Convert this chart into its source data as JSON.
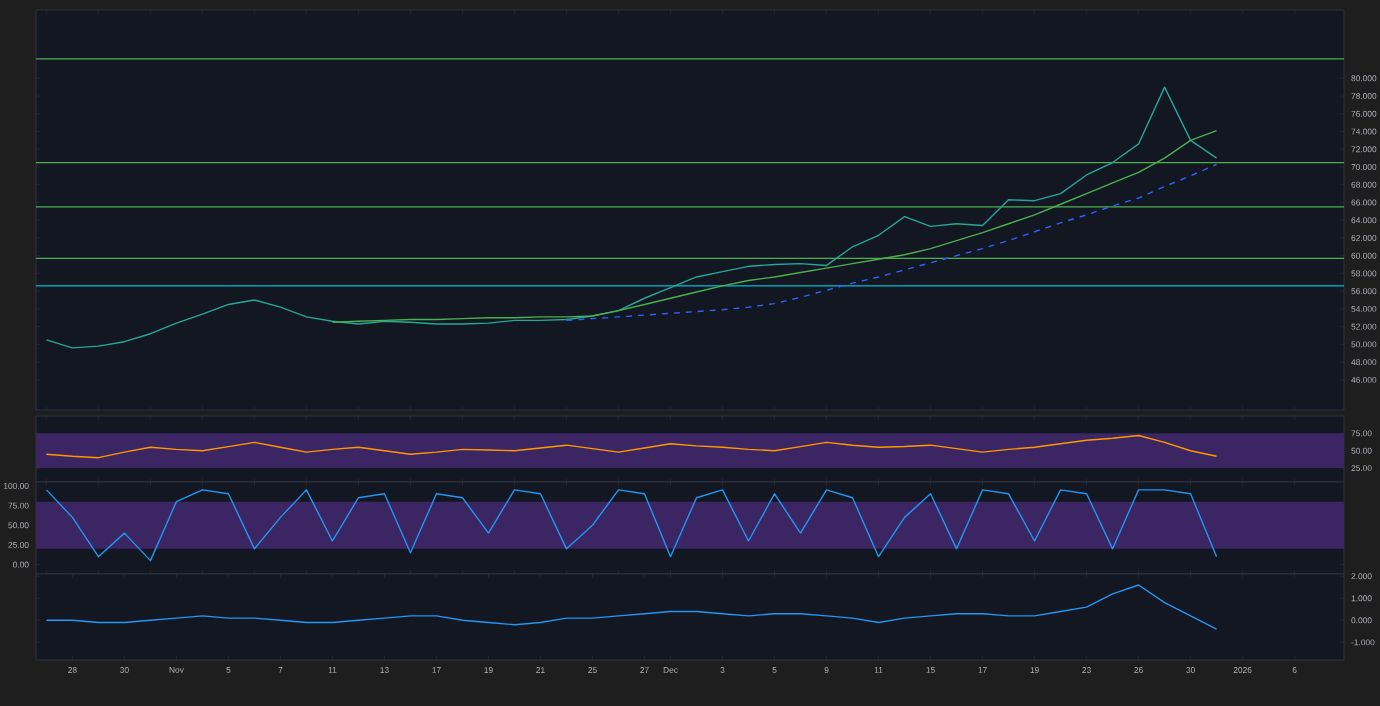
{
  "chart_data": [
    {
      "type": "line",
      "categories": [
        null,
        null,
        null,
        null,
        null,
        null,
        null,
        null,
        null,
        null,
        null,
        null,
        null,
        null,
        null,
        null,
        null,
        null,
        null,
        null,
        null,
        null,
        null,
        null,
        null,
        null,
        null,
        null,
        null,
        null,
        null,
        null,
        null,
        null,
        null,
        null,
        null,
        null,
        null,
        null,
        null,
        null,
        null,
        null,
        null,
        null,
        null,
        null,
        null,
        null
      ],
      "ylim": [
        42.6,
        87.7
      ],
      "yticks": [
        {
          "value": 46,
          "label": "46.000"
        },
        {
          "value": 48,
          "label": "48.000"
        },
        {
          "value": 50,
          "label": "50.000"
        },
        {
          "value": 52,
          "label": "52.000"
        },
        {
          "value": 54,
          "label": "54.000"
        },
        {
          "value": 56,
          "label": "56.000"
        },
        {
          "value": 58,
          "label": "58.000"
        },
        {
          "value": 60,
          "label": "60.000"
        },
        {
          "value": 62,
          "label": "62.000"
        },
        {
          "value": 64,
          "label": "64.000"
        },
        {
          "value": 66,
          "label": "66.000"
        },
        {
          "value": 68,
          "label": "68.000"
        },
        {
          "value": 70,
          "label": "70.000"
        },
        {
          "value": 72,
          "label": "72.000"
        },
        {
          "value": 74,
          "label": "74.000"
        },
        {
          "value": 76,
          "label": "76.000"
        },
        {
          "value": 78,
          "label": "78.000"
        },
        {
          "value": 80,
          "label": "80.000"
        }
      ],
      "series": [
        {
          "color": "#26a69a",
          "values": [
            50.5,
            49.6,
            49.8,
            50.3,
            51.2,
            52.4,
            53.4,
            54.5,
            55.0,
            54.2,
            53.1,
            52.6,
            52.3,
            52.6,
            52.5,
            52.3,
            52.3,
            52.4,
            52.7,
            52.7,
            52.8,
            53.2,
            53.8,
            55.2,
            56.4,
            57.6,
            58.2,
            58.8,
            59.0,
            59.1,
            58.9,
            61.0,
            62.3,
            64.4,
            63.3,
            63.6,
            63.4,
            66.3,
            66.2,
            67.0,
            69.1,
            70.5,
            72.6,
            79.0,
            73.0,
            71.0,
            null,
            null,
            null,
            null
          ]
        },
        {
          "color": "#4caf50",
          "values": [
            null,
            null,
            null,
            null,
            null,
            null,
            null,
            null,
            null,
            null,
            null,
            52.5,
            52.6,
            52.7,
            52.8,
            52.8,
            52.9,
            53.0,
            53.0,
            53.1,
            53.1,
            53.2,
            53.8,
            54.5,
            55.2,
            55.9,
            56.6,
            57.2,
            57.6,
            58.1,
            58.6,
            59.1,
            59.6,
            60.1,
            60.8,
            61.7,
            62.6,
            63.6,
            64.6,
            65.8,
            67.0,
            68.2,
            69.4,
            71.0,
            73.0,
            74.1,
            null,
            null,
            null,
            null
          ]
        },
        {
          "color": "#2962ff",
          "line_style": "dashed",
          "values": [
            null,
            null,
            null,
            null,
            null,
            null,
            null,
            null,
            null,
            null,
            null,
            null,
            null,
            null,
            null,
            null,
            null,
            null,
            null,
            null,
            52.7,
            52.9,
            53.1,
            53.3,
            53.5,
            53.7,
            53.9,
            54.2,
            54.6,
            55.3,
            56.1,
            56.9,
            57.6,
            58.4,
            59.2,
            60.0,
            60.8,
            61.7,
            62.7,
            63.7,
            64.6,
            65.6,
            66.5,
            67.8,
            69.0,
            70.3,
            null,
            null,
            null,
            null
          ]
        }
      ],
      "ref_lines": [
        {
          "axis": "y",
          "value": 82.2,
          "color": "#4caf50"
        },
        {
          "axis": "y",
          "value": 70.5,
          "color": "#4caf50"
        },
        {
          "axis": "y",
          "value": 65.5,
          "color": "#4caf50"
        },
        {
          "axis": "y",
          "value": 59.7,
          "color": "#4caf50"
        },
        {
          "axis": "y",
          "value": 56.6,
          "color": "#00bcd4"
        }
      ]
    },
    {
      "type": "line",
      "categories": [
        null,
        null,
        null,
        null,
        null,
        null,
        null,
        null,
        null,
        null,
        null,
        null,
        null,
        null,
        null,
        null,
        null,
        null,
        null,
        null,
        null,
        null,
        null,
        null,
        null,
        null,
        null,
        null,
        null,
        null,
        null,
        null,
        null,
        null,
        null,
        null,
        null,
        null,
        null,
        null,
        null,
        null,
        null,
        null,
        null,
        null,
        null,
        null,
        null,
        null
      ],
      "ylim": [
        5,
        100
      ],
      "yticks": [
        {
          "value": 25,
          "label": "25.00"
        },
        {
          "value": 50,
          "label": "50.00"
        },
        {
          "value": 75,
          "label": "75.00"
        }
      ],
      "bands": [
        {
          "axis": "y",
          "from": 25,
          "to": 75,
          "color": "#3c2563"
        }
      ],
      "series": [
        {
          "color": "#ff9800",
          "values": [
            45,
            42,
            40,
            48,
            55,
            52,
            50,
            56,
            62,
            55,
            48,
            52,
            55,
            50,
            45,
            48,
            52,
            51,
            50,
            54,
            58,
            53,
            48,
            54,
            60,
            57,
            55,
            52,
            50,
            56,
            62,
            58,
            55,
            56,
            58,
            53,
            48,
            52,
            55,
            60,
            65,
            68,
            72,
            62,
            50,
            42,
            null,
            null,
            null,
            null
          ]
        }
      ]
    },
    {
      "type": "line",
      "categories": [
        null,
        null,
        null,
        null,
        null,
        null,
        null,
        null,
        null,
        null,
        null,
        null,
        null,
        null,
        null,
        null,
        null,
        null,
        null,
        null,
        null,
        null,
        null,
        null,
        null,
        null,
        null,
        null,
        null,
        null,
        null,
        null,
        null,
        null,
        null,
        null,
        null,
        null,
        null,
        null,
        null,
        null,
        null,
        null,
        null,
        null,
        null,
        null,
        null,
        null
      ],
      "ylim": [
        -12,
        105
      ],
      "yticks": [
        {
          "value": 0,
          "label": "0.00"
        },
        {
          "value": 25,
          "label": "25.00"
        },
        {
          "value": 50,
          "label": "50.00"
        },
        {
          "value": 75,
          "label": "75.00"
        },
        {
          "value": 100,
          "label": "100.00"
        }
      ],
      "bands": [
        {
          "axis": "y",
          "from": 20,
          "to": 80,
          "color": "#3c2563"
        }
      ],
      "series": [
        {
          "color": "#2196f3",
          "values": [
            95,
            60,
            10,
            40,
            5,
            80,
            95,
            90,
            20,
            60,
            95,
            30,
            85,
            90,
            15,
            90,
            85,
            40,
            95,
            90,
            20,
            50,
            95,
            90,
            10,
            85,
            95,
            30,
            90,
            40,
            95,
            85,
            10,
            60,
            90,
            20,
            95,
            90,
            30,
            95,
            90,
            20,
            95,
            95,
            90,
            10,
            null,
            null,
            null,
            null
          ]
        }
      ]
    },
    {
      "type": "line",
      "categories": [
        null,
        "28",
        null,
        "30",
        null,
        "Nov",
        null,
        "5",
        null,
        "7",
        null,
        "11",
        null,
        "13",
        null,
        "17",
        null,
        "19",
        null,
        "21",
        null,
        "25",
        null,
        "27",
        "Dec",
        null,
        "3",
        null,
        "5",
        null,
        "9",
        null,
        "11",
        null,
        "15",
        null,
        "17",
        null,
        "19",
        null,
        "23",
        null,
        "26",
        null,
        "30",
        null,
        "2026",
        null,
        "6",
        null
      ],
      "ylim": [
        -1.8,
        2.1
      ],
      "yticks": [
        {
          "value": -1,
          "label": "-1.000"
        },
        {
          "value": 0,
          "label": "0.000"
        },
        {
          "value": 1,
          "label": "1.000"
        },
        {
          "value": 2,
          "label": "2.000"
        }
      ],
      "series": [
        {
          "color": "#2196f3",
          "values": [
            0,
            0,
            -0.1,
            -0.1,
            0,
            0.1,
            0.2,
            0.1,
            0.1,
            0,
            -0.1,
            -0.1,
            0,
            0.1,
            0.2,
            0.2,
            0,
            -0.1,
            -0.2,
            -0.1,
            0.1,
            0.1,
            0.2,
            0.3,
            0.4,
            0.4,
            0.3,
            0.2,
            0.3,
            0.3,
            0.2,
            0.1,
            -0.1,
            0.1,
            0.2,
            0.3,
            0.3,
            0.2,
            0.2,
            0.4,
            0.6,
            1.2,
            1.6,
            0.8,
            0.2,
            -0.4,
            null,
            null,
            null,
            null
          ]
        }
      ]
    }
  ]
}
